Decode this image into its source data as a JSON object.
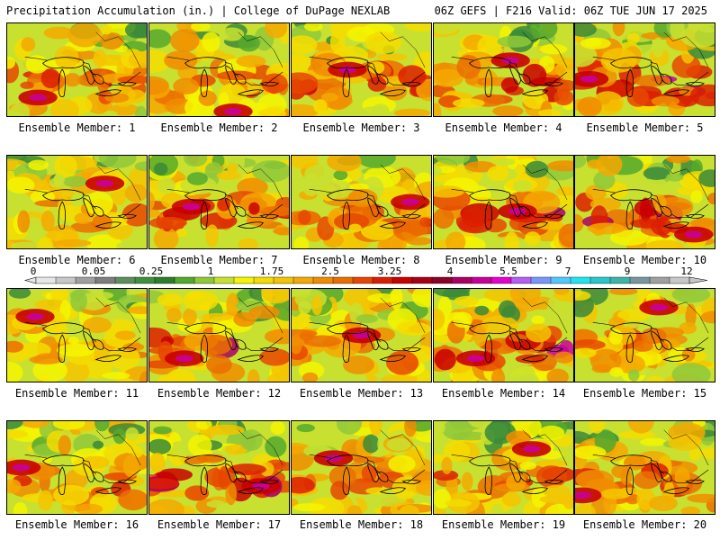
{
  "header": {
    "left": "Precipitation Accumulation (in.) | College of DuPage NEXLAB",
    "right": "06Z GEFS | F216 Valid: 06Z TUE JUN 17 2025"
  },
  "colorbar": {
    "labels": [
      "0",
      "0.05",
      "0.25",
      "1",
      "1.75",
      "2.5",
      "3.25",
      "4",
      "5.5",
      "7",
      "9",
      "12"
    ],
    "colors": [
      "#e6e6e6",
      "#c8c8c8",
      "#a0a0a0",
      "#7e7e7e",
      "#5c8f5c",
      "#3f8f3f",
      "#2e7d2e",
      "#55a82e",
      "#8fc83a",
      "#c8e030",
      "#f5f500",
      "#f5dc00",
      "#f5c400",
      "#f5a800",
      "#f08c00",
      "#eb6e00",
      "#e64600",
      "#dc1e00",
      "#c80000",
      "#aa0014",
      "#8c0028",
      "#aa0064",
      "#c8009b",
      "#e600d2",
      "#b45ff5",
      "#7896ff",
      "#50c8ff",
      "#1ee6f0",
      "#28c8c8",
      "#3cb4aa",
      "#7896a0",
      "#a0a0a0",
      "#c8c8c8"
    ]
  },
  "panels": [
    {
      "caption": "Ensemble Member: 1",
      "wet": 0.3,
      "seed": 1,
      "hot": [
        0.22,
        0.8
      ]
    },
    {
      "caption": "Ensemble Member: 2",
      "wet": 0.25,
      "seed": 2,
      "hot": [
        0.6,
        0.95
      ]
    },
    {
      "caption": "Ensemble Member: 3",
      "wet": 0.35,
      "seed": 3,
      "hot": [
        0.4,
        0.5
      ]
    },
    {
      "caption": "Ensemble Member: 4",
      "wet": 0.45,
      "seed": 4,
      "hot": [
        0.55,
        0.4
      ]
    },
    {
      "caption": "Ensemble Member: 5",
      "wet": 0.55,
      "seed": 5,
      "hot": [
        0.1,
        0.6
      ]
    },
    {
      "caption": "Ensemble Member: 6",
      "wet": 0.15,
      "seed": 6,
      "hot": [
        0.7,
        0.3
      ]
    },
    {
      "caption": "Ensemble Member: 7",
      "wet": 0.4,
      "seed": 7,
      "hot": [
        0.3,
        0.55
      ]
    },
    {
      "caption": "Ensemble Member: 8",
      "wet": 0.35,
      "seed": 8,
      "hot": [
        0.85,
        0.5
      ]
    },
    {
      "caption": "Ensemble Member: 9",
      "wet": 0.45,
      "seed": 9,
      "hot": [
        0.6,
        0.6
      ]
    },
    {
      "caption": "Ensemble Member: 10",
      "wet": 0.5,
      "seed": 10,
      "hot": [
        0.85,
        0.85
      ]
    },
    {
      "caption": "Ensemble Member: 11",
      "wet": 0.15,
      "seed": 11,
      "hot": [
        0.2,
        0.3
      ]
    },
    {
      "caption": "Ensemble Member: 12",
      "wet": 0.45,
      "seed": 12,
      "hot": [
        0.25,
        0.75
      ]
    },
    {
      "caption": "Ensemble Member: 13",
      "wet": 0.3,
      "seed": 13,
      "hot": [
        0.5,
        0.5
      ]
    },
    {
      "caption": "Ensemble Member: 14",
      "wet": 0.55,
      "seed": 14,
      "hot": [
        0.3,
        0.75
      ]
    },
    {
      "caption": "Ensemble Member: 15",
      "wet": 0.2,
      "seed": 15,
      "hot": [
        0.6,
        0.2
      ]
    },
    {
      "caption": "Ensemble Member: 16",
      "wet": 0.3,
      "seed": 16,
      "hot": [
        0.1,
        0.5
      ]
    },
    {
      "caption": "Ensemble Member: 17",
      "wet": 0.5,
      "seed": 17,
      "hot": [
        0.8,
        0.7
      ]
    },
    {
      "caption": "Ensemble Member: 18",
      "wet": 0.3,
      "seed": 18,
      "hot": [
        0.3,
        0.4
      ]
    },
    {
      "caption": "Ensemble Member: 19",
      "wet": 0.3,
      "seed": 19,
      "hot": [
        0.7,
        0.3
      ]
    },
    {
      "caption": "Ensemble Member: 20",
      "wet": 0.35,
      "seed": 20,
      "hot": [
        0.05,
        0.8
      ]
    }
  ]
}
